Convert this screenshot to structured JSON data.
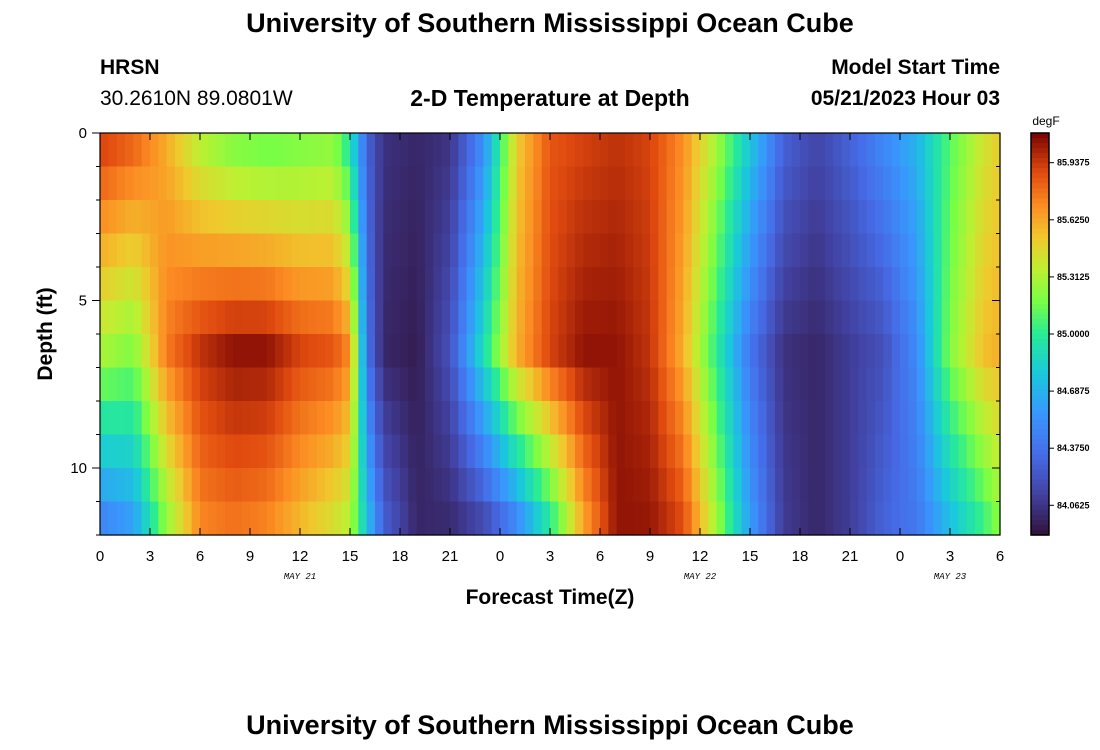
{
  "header": {
    "title": "University of Southern Mississippi Ocean Cube",
    "station": "HRSN",
    "coords": "30.2610N  89.0801W",
    "plot_title": "2-D Temperature at Depth",
    "model_label": "Model Start Time",
    "model_time": "05/21/2023 Hour 03"
  },
  "footer": {
    "title": "University of Southern Mississippi Ocean Cube"
  },
  "chart_data": {
    "type": "heatmap",
    "title": "2-D Temperature at Depth",
    "xlabel": "Forecast Time(Z)",
    "ylabel": "Depth (ft)",
    "x_ticks": [
      "0",
      "3",
      "6",
      "9",
      "12",
      "15",
      "18",
      "21",
      "0",
      "3",
      "6",
      "9",
      "12",
      "15",
      "18",
      "21",
      "0",
      "3",
      "6"
    ],
    "x_tick_hours": [
      0,
      3,
      6,
      9,
      12,
      15,
      18,
      21,
      24,
      27,
      30,
      33,
      36,
      39,
      42,
      45,
      48,
      51,
      54
    ],
    "date_labels": [
      {
        "label": "MAY 21",
        "hour": 12
      },
      {
        "label": "MAY 22",
        "hour": 36
      },
      {
        "label": "MAY 23",
        "hour": 51
      }
    ],
    "y_ticks": [
      0,
      5,
      10
    ],
    "ylim": [
      0,
      12
    ],
    "xlim": [
      0,
      54
    ],
    "colorbar": {
      "unit": "degF",
      "min": 83.9,
      "max": 86.1,
      "ticks": [
        "84.0625",
        "84.3750",
        "84.6875",
        "85.0000",
        "85.3125",
        "85.6250",
        "85.9375"
      ],
      "tick_values": [
        84.0625,
        84.375,
        84.6875,
        85.0,
        85.3125,
        85.625,
        85.9375
      ]
    },
    "depth_levels_ft": [
      0,
      1,
      2,
      3,
      4,
      5,
      6,
      7,
      8,
      9,
      10,
      11,
      12
    ],
    "temperature_profiles_degF": {
      "note_hours": [
        0,
        2,
        4,
        6,
        8,
        10,
        12,
        14,
        15,
        16,
        17,
        19,
        21,
        23,
        25,
        27,
        29,
        31,
        33,
        35,
        37,
        39,
        41,
        43,
        45,
        47,
        49,
        51,
        53,
        54
      ],
      "surface": [
        85.95,
        85.85,
        85.6,
        85.3,
        85.15,
        85.1,
        85.15,
        85.2,
        84.9,
        84.3,
        84.05,
        84.0,
        84.05,
        84.5,
        85.5,
        85.85,
        85.9,
        85.95,
        85.9,
        85.7,
        85.3,
        84.8,
        84.3,
        84.15,
        84.3,
        84.5,
        84.7,
        85.1,
        85.4,
        85.5
      ],
      "mid": [
        85.3,
        85.2,
        85.75,
        85.95,
        86.05,
        86.05,
        85.9,
        85.85,
        85.7,
        84.4,
        84.0,
        83.95,
        84.2,
        84.9,
        85.6,
        85.9,
        86.05,
        86.05,
        85.95,
        85.6,
        85.0,
        84.4,
        84.05,
        84.0,
        84.1,
        84.2,
        84.5,
        85.2,
        85.55,
        85.6
      ],
      "bottom": [
        84.4,
        84.55,
        85.2,
        85.7,
        85.75,
        85.7,
        85.55,
        85.4,
        85.3,
        84.8,
        84.3,
        84.0,
        84.0,
        84.1,
        84.4,
        84.9,
        85.6,
        86.05,
        86.05,
        85.9,
        85.3,
        84.6,
        84.1,
        84.0,
        84.1,
        84.3,
        84.4,
        84.7,
        85.0,
        85.2
      ]
    }
  }
}
